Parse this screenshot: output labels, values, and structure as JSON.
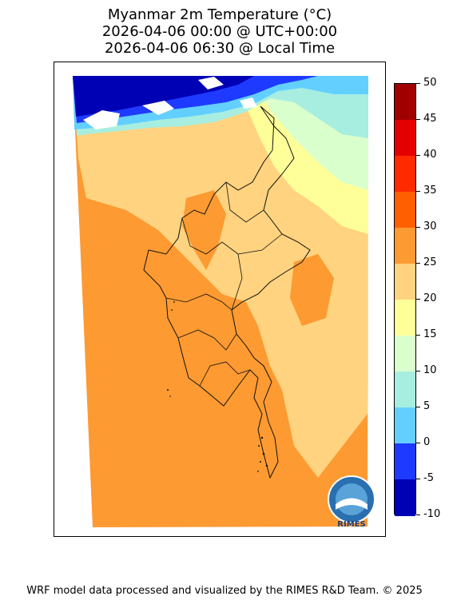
{
  "title": {
    "line1": "Myanmar 2m Temperature (°C)",
    "line2": "2026-04-06 00:00 @ UTC+00:00",
    "line3": "2026-04-06 06:30 @ Local Time"
  },
  "map": {
    "region": "Myanmar",
    "variable": "2m Temperature",
    "units": "°C",
    "logo_text": "RIMES"
  },
  "colorbar": {
    "ticks": [
      50,
      45,
      40,
      35,
      30,
      25,
      20,
      15,
      10,
      5,
      0,
      -5,
      -10
    ],
    "tick_labels": [
      "50",
      "45",
      "40",
      "35",
      "30",
      "25",
      "20",
      "15",
      "10",
      "5",
      "0",
      "-5",
      "-10"
    ],
    "bins_top_to_bottom": [
      {
        "range": [
          45,
          50
        ],
        "color": "#a00000"
      },
      {
        "range": [
          40,
          45
        ],
        "color": "#e50000"
      },
      {
        "range": [
          35,
          40
        ],
        "color": "#ff2a00"
      },
      {
        "range": [
          30,
          35
        ],
        "color": "#ff5f00"
      },
      {
        "range": [
          25,
          30
        ],
        "color": "#fd9a32"
      },
      {
        "range": [
          20,
          25
        ],
        "color": "#ffd37f"
      },
      {
        "range": [
          15,
          20
        ],
        "color": "#ffff99"
      },
      {
        "range": [
          10,
          15
        ],
        "color": "#d9ffcc"
      },
      {
        "range": [
          5,
          10
        ],
        "color": "#a8eee0"
      },
      {
        "range": [
          0,
          5
        ],
        "color": "#63cfff"
      },
      {
        "range": [
          -5,
          0
        ],
        "color": "#1f3aff"
      },
      {
        "range": [
          -10,
          -5
        ],
        "color": "#0000b5"
      }
    ]
  },
  "footer": {
    "credit": "WRF model data processed and visualized by the RIMES R&D Team. © 2025"
  }
}
